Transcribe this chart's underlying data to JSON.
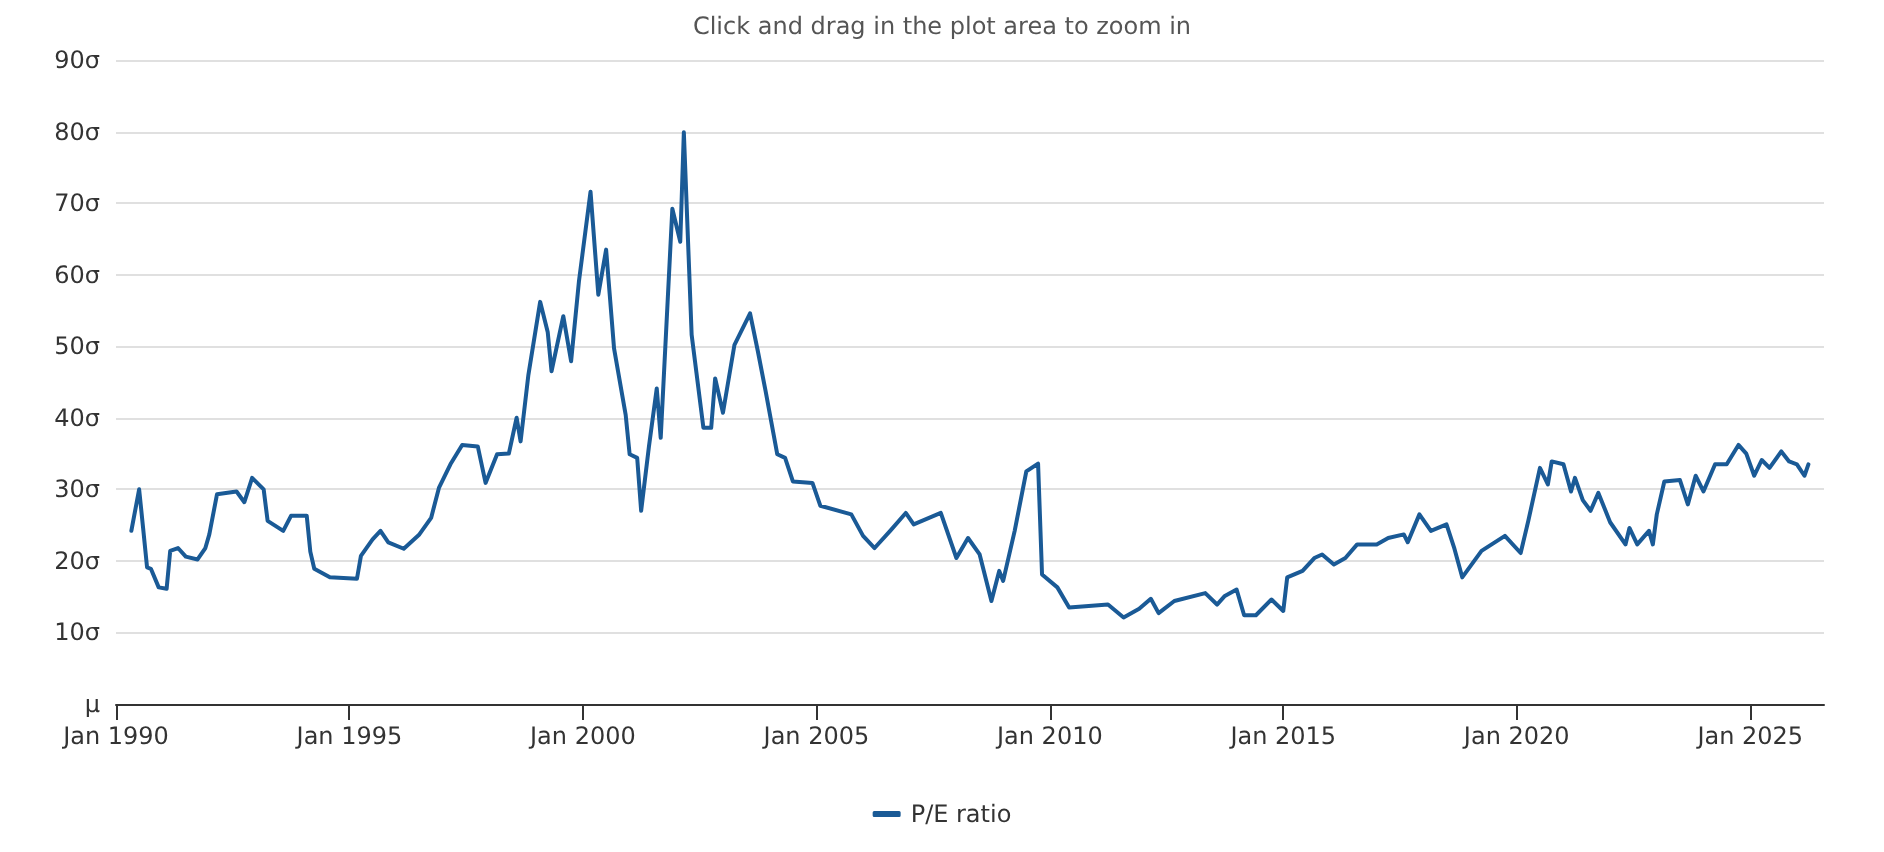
{
  "chart_data": {
    "type": "line",
    "title": "Click and drag in the plot area to zoom in",
    "x": [
      "1990-05",
      "1990-07",
      "1990-08",
      "1990-09",
      "1990-10",
      "1990-12",
      "1991-02",
      "1991-03",
      "1991-05",
      "1991-07",
      "1991-10",
      "1991-12",
      "1992-01",
      "1992-03",
      "1992-08",
      "1992-10",
      "1992-12",
      "1993-03",
      "1993-04",
      "1993-08",
      "1993-10",
      "1994-02",
      "1994-03",
      "1994-04",
      "1994-08",
      "1995-03",
      "1995-04",
      "1995-07",
      "1995-09",
      "1995-11",
      "1996-03",
      "1996-07",
      "1996-10",
      "1996-12",
      "1997-03",
      "1997-06",
      "1997-10",
      "1997-12",
      "1998-03",
      "1998-06",
      "1998-08",
      "1998-09",
      "1998-11",
      "1999-02",
      "1999-04",
      "1999-05",
      "1999-08",
      "1999-10",
      "1999-12",
      "2000-03",
      "2000-05",
      "2000-07",
      "2000-09",
      "2000-12",
      "2001-01",
      "2001-03",
      "2001-04",
      "2001-06",
      "2001-08",
      "2001-09",
      "2001-12",
      "2002-02",
      "2002-03",
      "2002-05",
      "2002-08",
      "2002-10",
      "2002-11",
      "2003-01",
      "2003-04",
      "2003-08",
      "2003-10",
      "2003-12",
      "2004-03",
      "2004-05",
      "2004-07",
      "2004-12",
      "2005-02",
      "2005-10",
      "2006-01",
      "2006-04",
      "2006-08",
      "2006-12",
      "2007-02",
      "2007-06",
      "2007-09",
      "2008-01",
      "2008-04",
      "2008-07",
      "2008-10",
      "2008-12",
      "2009-01",
      "2009-04",
      "2009-07",
      "2009-10",
      "2009-11",
      "2010-03",
      "2010-06",
      "2010-11",
      "2011-04",
      "2011-08",
      "2011-12",
      "2012-03",
      "2012-05",
      "2012-09",
      "2013-05",
      "2013-08",
      "2013-10",
      "2014-01",
      "2014-03",
      "2014-06",
      "2014-10",
      "2015-01",
      "2015-02",
      "2015-06",
      "2015-09",
      "2015-11",
      "2016-02",
      "2016-05",
      "2016-08",
      "2017-01",
      "2017-04",
      "2017-08",
      "2017-09",
      "2017-12",
      "2018-03",
      "2018-07",
      "2018-09",
      "2018-11",
      "2019-04",
      "2019-10",
      "2020-02",
      "2020-04",
      "2020-07",
      "2020-09",
      "2020-10",
      "2021-01",
      "2021-03",
      "2021-04",
      "2021-06",
      "2021-08",
      "2021-10",
      "2022-01",
      "2022-05",
      "2022-06",
      "2022-08",
      "2022-11",
      "2022-12",
      "2023-01",
      "2023-03",
      "2023-07",
      "2023-09",
      "2023-11",
      "2024-01",
      "2024-04",
      "2024-07",
      "2024-10",
      "2024-12",
      "2025-02",
      "2025-04",
      "2025-06",
      "2025-09",
      "2025-11",
      "2026-01",
      "2026-03",
      "2026-04"
    ],
    "series": [
      {
        "name": "P/E ratio",
        "color": "#1a5a96",
        "values": [
          24.2,
          30.0,
          24.6,
          19.1,
          18.9,
          16.3,
          16.1,
          21.4,
          21.8,
          20.6,
          20.2,
          21.8,
          23.7,
          29.3,
          29.7,
          28.2,
          31.6,
          30.0,
          25.6,
          24.2,
          26.3,
          26.3,
          21.3,
          18.9,
          17.7,
          17.5,
          20.7,
          23.0,
          24.2,
          22.6,
          21.7,
          23.7,
          26.0,
          30.2,
          33.5,
          36.2,
          36.0,
          30.9,
          34.9,
          35.0,
          40.0,
          36.7,
          46.0,
          56.2,
          52.0,
          46.5,
          54.2,
          47.9,
          59.0,
          71.6,
          57.2,
          63.5,
          49.7,
          40.4,
          34.9,
          34.4,
          27.0,
          36.0,
          44.1,
          37.2,
          69.2,
          64.6,
          79.9,
          51.6,
          38.6,
          38.6,
          45.5,
          40.7,
          50.2,
          54.6,
          49.3,
          43.7,
          34.9,
          34.4,
          31.1,
          30.9,
          27.7,
          26.5,
          23.5,
          21.8,
          24.2,
          26.7,
          25.1,
          26.0,
          26.7,
          20.4,
          23.2,
          20.9,
          14.4,
          18.6,
          17.2,
          24.2,
          32.5,
          33.6,
          18.1,
          16.3,
          13.5,
          13.7,
          13.9,
          12.1,
          13.3,
          14.7,
          12.7,
          14.4,
          15.5,
          13.9,
          15.1,
          16.0,
          12.4,
          12.4,
          14.6,
          13.0,
          17.7,
          18.6,
          20.4,
          20.9,
          19.5,
          20.4,
          22.3,
          22.3,
          23.2,
          23.7,
          22.6,
          26.5,
          24.2,
          25.1,
          21.7,
          17.7,
          21.4,
          23.5,
          21.1,
          25.6,
          33.0,
          30.7,
          33.9,
          33.5,
          29.7,
          31.6,
          28.5,
          27.0,
          29.5,
          25.4,
          22.3,
          24.6,
          22.3,
          24.2,
          22.3,
          26.5,
          31.1,
          31.3,
          27.9,
          31.9,
          29.7,
          33.5,
          33.5,
          36.2,
          35.0,
          31.9,
          34.1,
          33.0,
          35.3,
          33.9,
          33.5,
          31.9,
          33.5
        ]
      }
    ],
    "xlim": [
      "1990-01",
      "2026-08"
    ],
    "xticks": [
      {
        "value": "1990-01",
        "label": "Jan 1990"
      },
      {
        "value": "1995-01",
        "label": "Jan 1995"
      },
      {
        "value": "2000-01",
        "label": "Jan 2000"
      },
      {
        "value": "2005-01",
        "label": "Jan 2005"
      },
      {
        "value": "2010-01",
        "label": "Jan 2010"
      },
      {
        "value": "2015-01",
        "label": "Jan 2015"
      },
      {
        "value": "2020-01",
        "label": "Jan 2020"
      },
      {
        "value": "2025-01",
        "label": "Jan 2025"
      }
    ],
    "ylim": [
      0,
      90
    ],
    "yticks": [
      {
        "value": 0,
        "label": "μ"
      },
      {
        "value": 10,
        "label": "10σ"
      },
      {
        "value": 20,
        "label": "20σ"
      },
      {
        "value": 30,
        "label": "30σ"
      },
      {
        "value": 40,
        "label": "40σ"
      },
      {
        "value": 50,
        "label": "50σ"
      },
      {
        "value": 60,
        "label": "60σ"
      },
      {
        "value": 70,
        "label": "70σ"
      },
      {
        "value": 80,
        "label": "80σ"
      },
      {
        "value": 90,
        "label": "90σ"
      }
    ],
    "grid": "y",
    "legend": "bottom",
    "line_style": "solid"
  }
}
